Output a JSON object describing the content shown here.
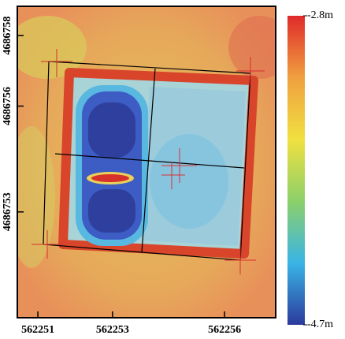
{
  "chart_data": {
    "type": "heatmap",
    "xlim": [
      562250.45,
      562257.37
    ],
    "xticks": [
      562251,
      562253,
      562256
    ],
    "ylim": [
      4686750.0,
      4686758.83
    ],
    "yticks": [
      4686758,
      4686756,
      4686753
    ],
    "colorbar": {
      "zlim": [
        -4.7,
        -2.8
      ],
      "ticks": [
        {
          "value": -2.8,
          "label": "-2.8m"
        },
        {
          "value": -4.7,
          "label": "-4.7m"
        }
      ],
      "colors": [
        "#2b3a9c",
        "#3ab4e6",
        "#8cd06a",
        "#f0e040",
        "#f0a040",
        "#e02a2a"
      ]
    }
  }
}
